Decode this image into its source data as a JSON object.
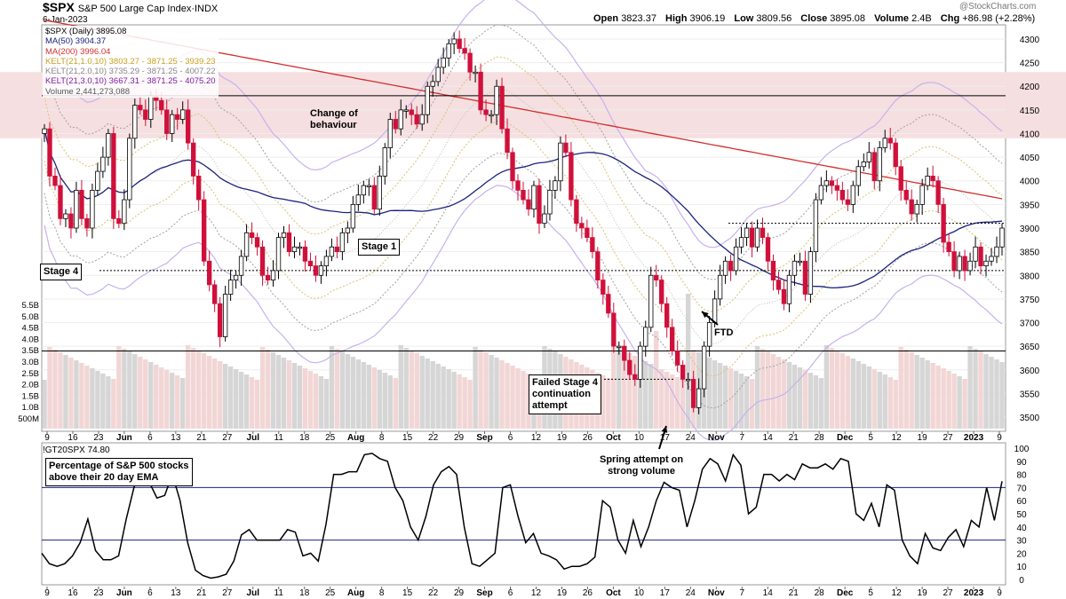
{
  "header": {
    "symbol": "$SPX",
    "description": "S&P 500 Large Cap Index·INDX",
    "date": "6-Jan-2023",
    "open_label": "Open",
    "open": "3823.37",
    "high_label": "High",
    "high": "3906.19",
    "low_label": "Low",
    "low": "3809.56",
    "close_label": "Close",
    "close": "3895.08",
    "volume_label": "Volume",
    "volume": "2.4B",
    "chg_label": "Chg",
    "chg": "+86.98 (+2.28%)",
    "watermark": "@StockCharts.com"
  },
  "legend": [
    {
      "text": "$SPX (Daily) 3895.08",
      "color": "#000000"
    },
    {
      "text": "MA(50) 3904.37",
      "color": "#1a237e"
    },
    {
      "text": "MA(200) 3996.04",
      "color": "#d32f2f"
    },
    {
      "text": "KELT(21,1.0,10) 3803.27 - 3871.25 - 3939.23",
      "color": "#c8a020"
    },
    {
      "text": "KELT(21,2.0,10) 3735.29 - 3871.25 - 4007.22",
      "color": "#888888"
    },
    {
      "text": "KELT(21,3.0,10) 3667.31 - 3871.25 - 4075.20",
      "color": "#7b1fa2"
    },
    {
      "text": "Volume 2,441,273,088",
      "color": "#555555"
    }
  ],
  "annotations": {
    "change_behaviour": [
      "Change of",
      "behaviour"
    ],
    "stage1": "Stage 1",
    "stage4": "Stage 4",
    "ftd": "FTD",
    "failed": [
      "Failed Stage 4",
      "continuation",
      "attempt"
    ],
    "spring": [
      "Spring attempt on",
      "strong volume"
    ],
    "indicator_note": [
      "Percentage of S&P 500 stocks",
      "above their 20 day EMA"
    ]
  },
  "indicator": {
    "label": "!GT20SPX 74.80"
  },
  "colors": {
    "up": "#ffffff",
    "down": "#d0103a",
    "ma50": "#1a237e",
    "ma200": "#d32f2f",
    "kelt1": "#d8c070",
    "kelt2": "#a0a0a0",
    "kelt3": "#c7b2ec",
    "zone": "#f6dfe1",
    "vol_up": "#d6d6d6",
    "vol_down": "#f2d6d6"
  },
  "chart_data": [
    {
      "type": "candlestick",
      "title": "$SPX S&P 500 Large Cap Index·INDX",
      "ylim": [
        3470,
        4330
      ],
      "yticks": [
        3500,
        3550,
        3600,
        3650,
        3700,
        3750,
        3800,
        3850,
        3900,
        3950,
        4000,
        4050,
        4100,
        4150,
        4200,
        4250,
        4300
      ],
      "xticks": [
        "9",
        "16",
        "23",
        "Jun",
        "6",
        "13",
        "21",
        "27",
        "Jul",
        "11",
        "18",
        "25",
        "Aug",
        "8",
        "15",
        "22",
        "29",
        "Sep",
        "6",
        "12",
        "19",
        "26",
        "Oct",
        "10",
        "17",
        "24",
        "Nov",
        "7",
        "14",
        "21",
        "28",
        "Dec",
        "5",
        "12",
        "19",
        "27",
        "2023",
        "9"
      ],
      "volume_ticks": [
        "500M",
        "1.0B",
        "1.5B",
        "2.0B",
        "2.5B",
        "3.0B",
        "3.5B",
        "4.0B",
        "4.5B",
        "5.0B",
        "5.5B"
      ],
      "close": [
        4110,
        4010,
        3990,
        3920,
        3930,
        3900,
        3980,
        3920,
        3900,
        3980,
        4020,
        4050,
        4100,
        3920,
        3910,
        3960,
        4090,
        4160,
        4150,
        4130,
        4180,
        4170,
        4150,
        4100,
        4140,
        4130,
        4150,
        4080,
        4010,
        3960,
        3830,
        3780,
        3740,
        3670,
        3760,
        3790,
        3800,
        3840,
        3890,
        3880,
        3860,
        3800,
        3790,
        3810,
        3880,
        3890,
        3850,
        3860,
        3860,
        3830,
        3820,
        3800,
        3820,
        3840,
        3860,
        3850,
        3890,
        3900,
        3950,
        3970,
        3990,
        3990,
        3940,
        4010,
        4070,
        4130,
        4110,
        4150,
        4150,
        4140,
        4120,
        4140,
        4200,
        4210,
        4240,
        4260,
        4290,
        4300,
        4280,
        4270,
        4230,
        4230,
        4150,
        4140,
        4140,
        4200,
        4110,
        4060,
        4000,
        3980,
        3960,
        3940,
        3990,
        3910,
        3930,
        3980,
        4000,
        4080,
        4060,
        3960,
        3910,
        3900,
        3880,
        3850,
        3790,
        3760,
        3720,
        3650,
        3650,
        3620,
        3590,
        3580,
        3650,
        3690,
        3800,
        3790,
        3740,
        3690,
        3640,
        3610,
        3580,
        3580,
        3520,
        3560,
        3650,
        3700,
        3750,
        3800,
        3830,
        3810,
        3860,
        3880,
        3900,
        3860,
        3900,
        3880,
        3830,
        3790,
        3770,
        3740,
        3800,
        3830,
        3830,
        3760,
        3850,
        3960,
        3990,
        4000,
        3990,
        3980,
        3960,
        3950,
        3990,
        4030,
        4040,
        4060,
        4000,
        4070,
        4090,
        4080,
        4030,
        3980,
        3960,
        3930,
        3950,
        3990,
        4010,
        4000,
        3950,
        3870,
        3850,
        3810,
        3840,
        3810,
        3830,
        3860,
        3820,
        3830,
        3840,
        3860,
        3900
      ]
    },
    {
      "type": "line",
      "title": "!GT20SPX",
      "ylim": [
        0,
        100
      ],
      "yticks": [
        0,
        10,
        20,
        30,
        40,
        50,
        60,
        70,
        80,
        90,
        100
      ],
      "reference_lines": [
        70,
        30
      ],
      "values": [
        20,
        12,
        10,
        12,
        18,
        28,
        46,
        22,
        15,
        15,
        18,
        46,
        70,
        85,
        74,
        62,
        64,
        80,
        60,
        28,
        7,
        3,
        1,
        2,
        4,
        14,
        34,
        38,
        30,
        30,
        30,
        30,
        38,
        36,
        18,
        20,
        14,
        42,
        80,
        80,
        82,
        82,
        95,
        96,
        92,
        90,
        70,
        60,
        40,
        30,
        48,
        72,
        82,
        86,
        80,
        40,
        12,
        10,
        15,
        20,
        70,
        72,
        48,
        28,
        35,
        20,
        18,
        15,
        8,
        10,
        10,
        12,
        17,
        60,
        55,
        30,
        20,
        45,
        25,
        40,
        60,
        74,
        70,
        68,
        40,
        60,
        84,
        92,
        88,
        75,
        95,
        87,
        50,
        55,
        80,
        80,
        75,
        80,
        76,
        88,
        85,
        85,
        88,
        84,
        92,
        90,
        50,
        45,
        58,
        40,
        72,
        68,
        30,
        18,
        12,
        35,
        24,
        22,
        32,
        38,
        25,
        45,
        40,
        70,
        45,
        74.8
      ]
    }
  ]
}
